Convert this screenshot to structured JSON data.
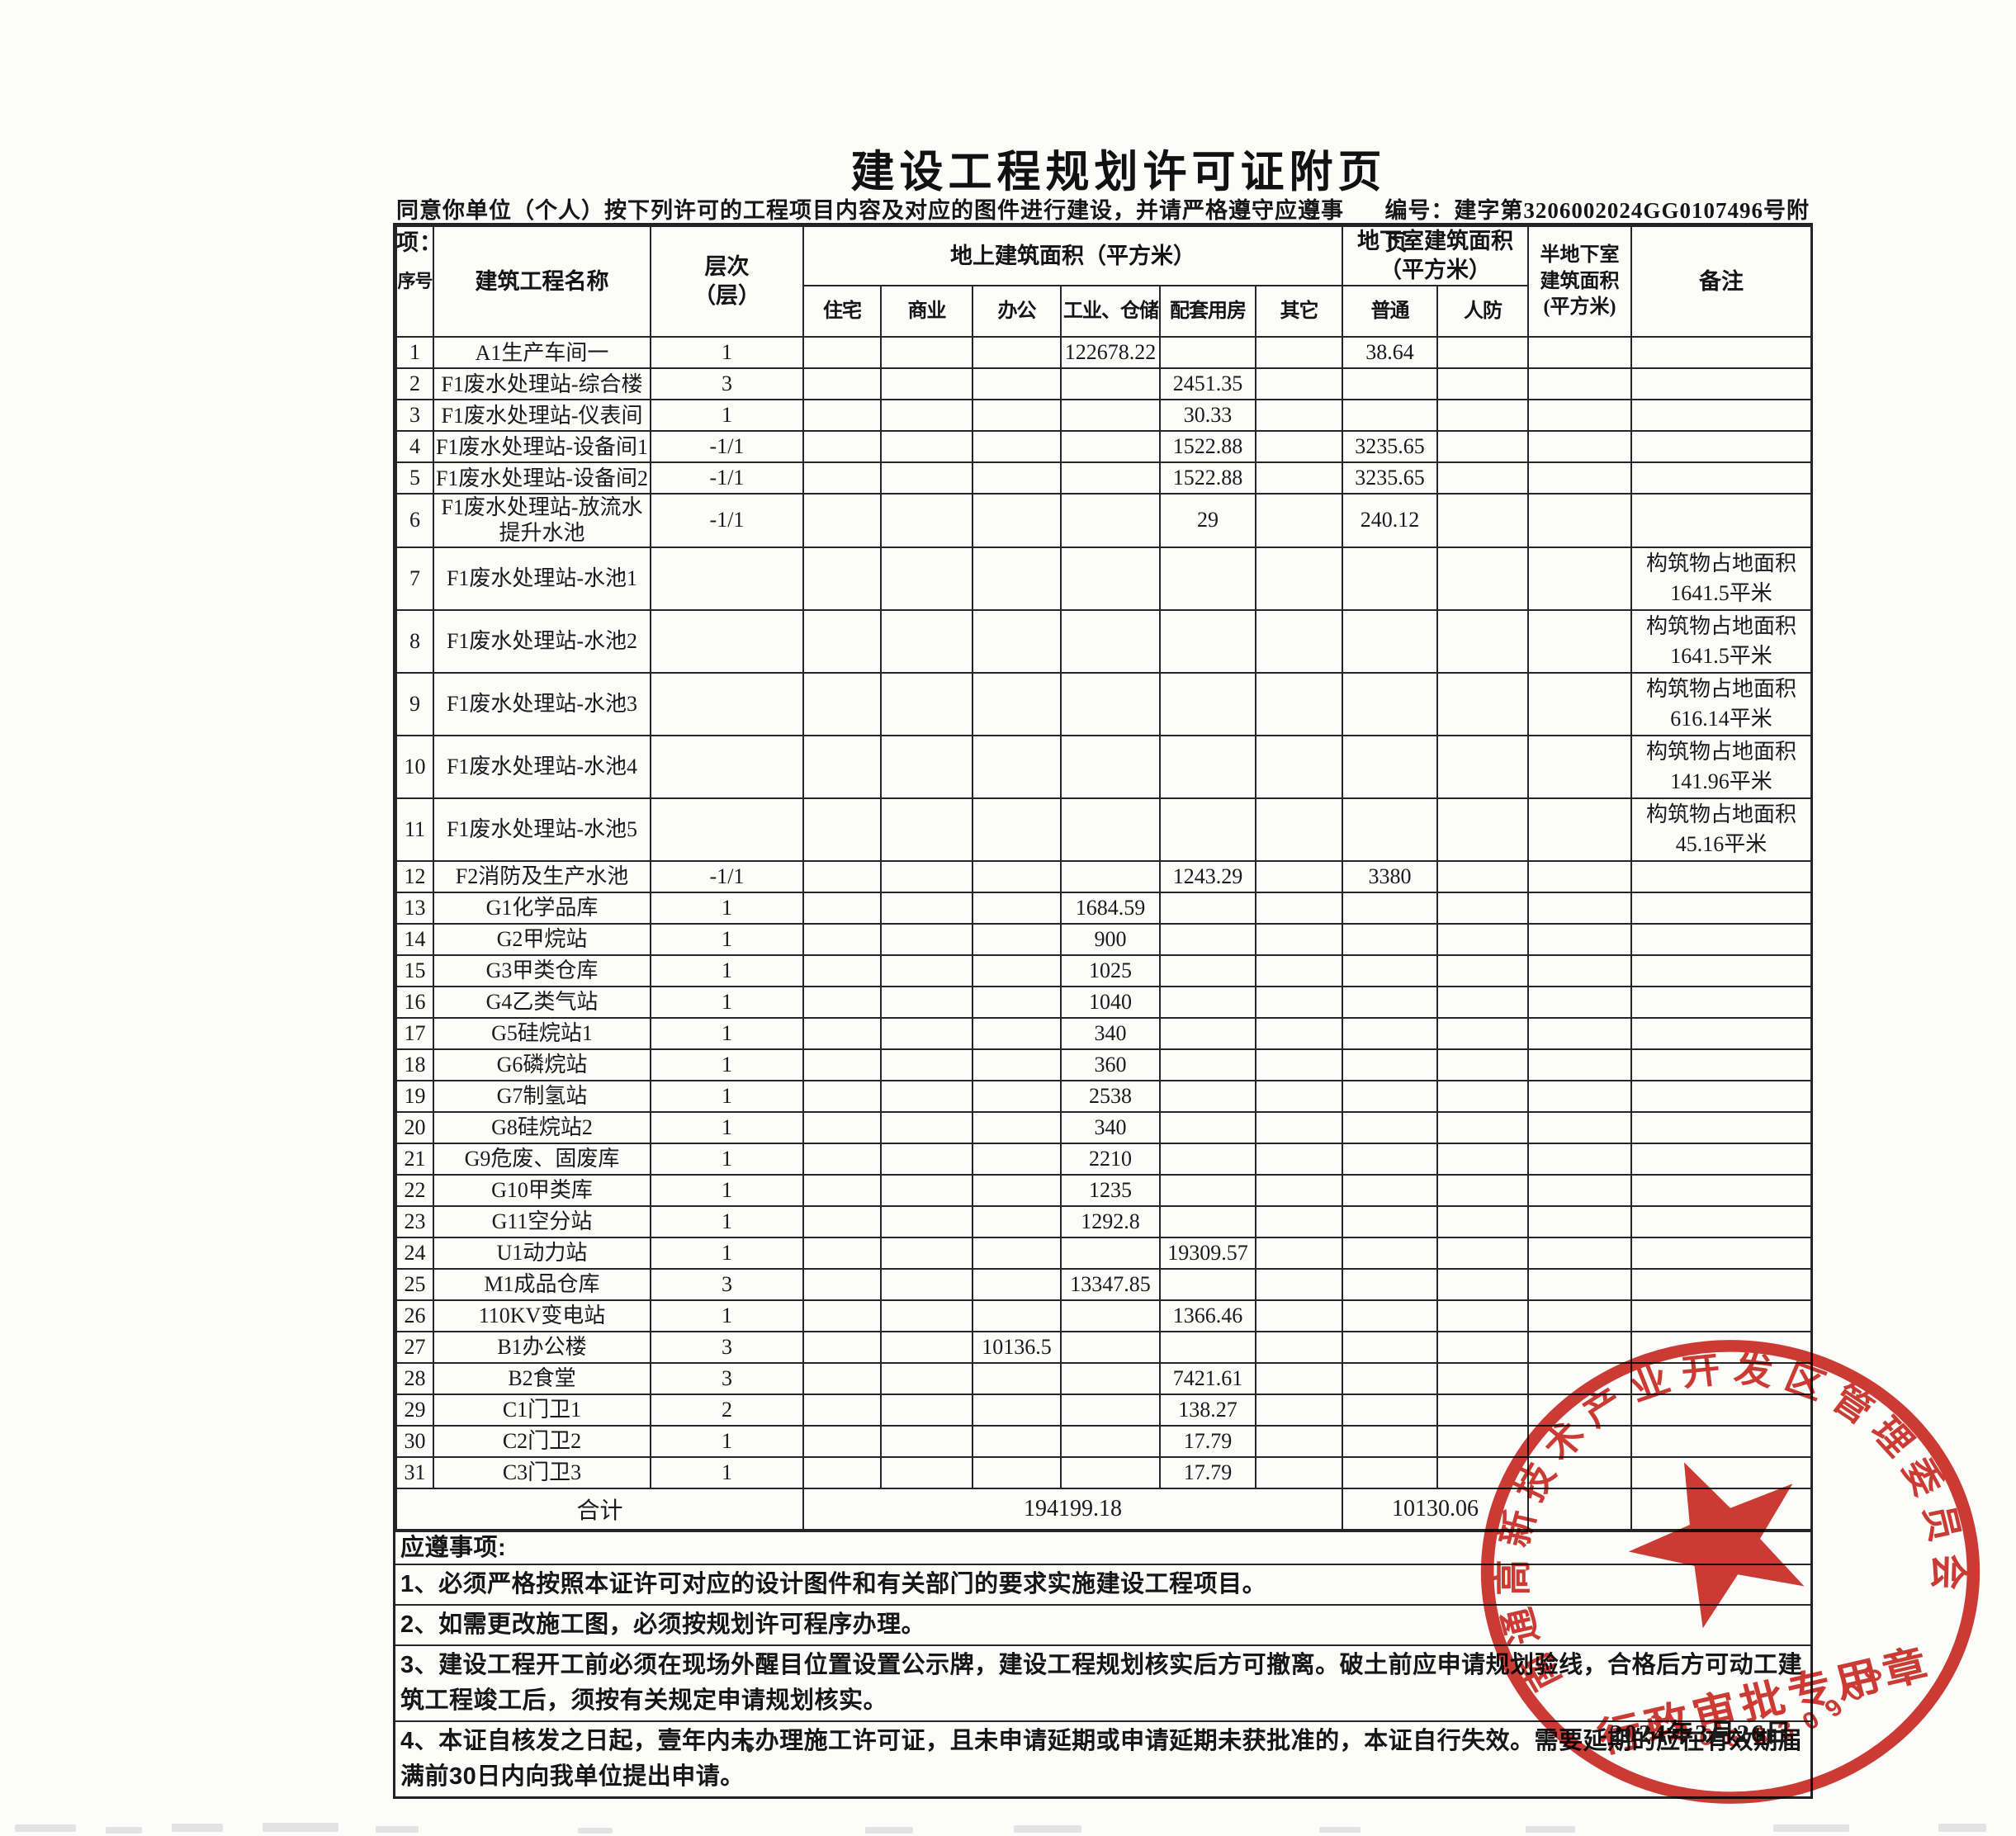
{
  "page": {
    "title": "建设工程规划许可证附页",
    "instruction": "同意你单位（个人）按下列许可的工程项目内容及对应的图件进行建设，并请严格遵守应遵事项：",
    "doc_number": "编号：建字第3206002024GG0107496号附页",
    "issue_date": "2024年3月26日"
  },
  "table": {
    "col_keys": [
      "seq",
      "name",
      "floors",
      "residential",
      "commercial",
      "office",
      "industrial-storage",
      "ancillary",
      "other",
      "basement-common",
      "basement-civil-defense",
      "semi-basement",
      "remark"
    ],
    "headers": {
      "seq": "序号",
      "name": "建筑工程名称",
      "floors": "层次\n（层）",
      "above_ground_group": "地上建筑面积（平方米）",
      "above_ground_cols": [
        "住宅",
        "商业",
        "办公",
        "工业、仓储",
        "配套用房",
        "其它"
      ],
      "basement_group": "地下室建筑面积\n（平方米）",
      "basement_cols": [
        "普通",
        "人防"
      ],
      "semi_basement": "半地下室\n建筑面积\n(平方米)",
      "remark": "备注"
    },
    "rows": [
      [
        "1",
        "A1生产车间一",
        "1",
        "",
        "",
        "",
        "122678.22",
        "",
        "",
        "38.64",
        "",
        "",
        ""
      ],
      [
        "2",
        "F1废水处理站-综合楼",
        "3",
        "",
        "",
        "",
        "",
        "2451.35",
        "",
        "",
        "",
        "",
        ""
      ],
      [
        "3",
        "F1废水处理站-仪表间",
        "1",
        "",
        "",
        "",
        "",
        "30.33",
        "",
        "",
        "",
        "",
        ""
      ],
      [
        "4",
        "F1废水处理站-设备间1",
        "-1/1",
        "",
        "",
        "",
        "",
        "1522.88",
        "",
        "3235.65",
        "",
        "",
        ""
      ],
      [
        "5",
        "F1废水处理站-设备间2",
        "-1/1",
        "",
        "",
        "",
        "",
        "1522.88",
        "",
        "3235.65",
        "",
        "",
        ""
      ],
      [
        "6",
        "F1废水处理站-放流水提升水池",
        "-1/1",
        "",
        "",
        "",
        "",
        "29",
        "",
        "240.12",
        "",
        "",
        ""
      ],
      [
        "7",
        "F1废水处理站-水池1",
        "",
        "",
        "",
        "",
        "",
        "",
        "",
        "",
        "",
        "",
        "构筑物占地面积1641.5平米"
      ],
      [
        "8",
        "F1废水处理站-水池2",
        "",
        "",
        "",
        "",
        "",
        "",
        "",
        "",
        "",
        "",
        "构筑物占地面积1641.5平米"
      ],
      [
        "9",
        "F1废水处理站-水池3",
        "",
        "",
        "",
        "",
        "",
        "",
        "",
        "",
        "",
        "",
        "构筑物占地面积616.14平米"
      ],
      [
        "10",
        "F1废水处理站-水池4",
        "",
        "",
        "",
        "",
        "",
        "",
        "",
        "",
        "",
        "",
        "构筑物占地面积141.96平米"
      ],
      [
        "11",
        "F1废水处理站-水池5",
        "",
        "",
        "",
        "",
        "",
        "",
        "",
        "",
        "",
        "",
        "构筑物占地面积45.16平米"
      ],
      [
        "12",
        "F2消防及生产水池",
        "-1/1",
        "",
        "",
        "",
        "",
        "1243.29",
        "",
        "3380",
        "",
        "",
        ""
      ],
      [
        "13",
        "G1化学品库",
        "1",
        "",
        "",
        "",
        "1684.59",
        "",
        "",
        "",
        "",
        "",
        ""
      ],
      [
        "14",
        "G2甲烷站",
        "1",
        "",
        "",
        "",
        "900",
        "",
        "",
        "",
        "",
        "",
        ""
      ],
      [
        "15",
        "G3甲类仓库",
        "1",
        "",
        "",
        "",
        "1025",
        "",
        "",
        "",
        "",
        "",
        ""
      ],
      [
        "16",
        "G4乙类气站",
        "1",
        "",
        "",
        "",
        "1040",
        "",
        "",
        "",
        "",
        "",
        ""
      ],
      [
        "17",
        "G5硅烷站1",
        "1",
        "",
        "",
        "",
        "340",
        "",
        "",
        "",
        "",
        "",
        ""
      ],
      [
        "18",
        "G6磷烷站",
        "1",
        "",
        "",
        "",
        "360",
        "",
        "",
        "",
        "",
        "",
        ""
      ],
      [
        "19",
        "G7制氢站",
        "1",
        "",
        "",
        "",
        "2538",
        "",
        "",
        "",
        "",
        "",
        ""
      ],
      [
        "20",
        "G8硅烷站2",
        "1",
        "",
        "",
        "",
        "340",
        "",
        "",
        "",
        "",
        "",
        ""
      ],
      [
        "21",
        "G9危废、固废库",
        "1",
        "",
        "",
        "",
        "2210",
        "",
        "",
        "",
        "",
        "",
        ""
      ],
      [
        "22",
        "G10甲类库",
        "1",
        "",
        "",
        "",
        "1235",
        "",
        "",
        "",
        "",
        "",
        ""
      ],
      [
        "23",
        "G11空分站",
        "1",
        "",
        "",
        "",
        "1292.8",
        "",
        "",
        "",
        "",
        "",
        ""
      ],
      [
        "24",
        "U1动力站",
        "1",
        "",
        "",
        "",
        "",
        "19309.57",
        "",
        "",
        "",
        "",
        ""
      ],
      [
        "25",
        "M1成品仓库",
        "3",
        "",
        "",
        "",
        "13347.85",
        "",
        "",
        "",
        "",
        "",
        ""
      ],
      [
        "26",
        "110KV变电站",
        "1",
        "",
        "",
        "",
        "",
        "1366.46",
        "",
        "",
        "",
        "",
        ""
      ],
      [
        "27",
        "B1办公楼",
        "3",
        "",
        "",
        "10136.5",
        "",
        "",
        "",
        "",
        "",
        "",
        ""
      ],
      [
        "28",
        "B2食堂",
        "3",
        "",
        "",
        "",
        "",
        "7421.61",
        "",
        "",
        "",
        "",
        ""
      ],
      [
        "29",
        "C1门卫1",
        "2",
        "",
        "",
        "",
        "",
        "138.27",
        "",
        "",
        "",
        "",
        ""
      ],
      [
        "30",
        "C2门卫2",
        "1",
        "",
        "",
        "",
        "",
        "17.79",
        "",
        "",
        "",
        "",
        ""
      ],
      [
        "31",
        "C3门卫3",
        "1",
        "",
        "",
        "",
        "",
        "17.79",
        "",
        "",
        "",
        "",
        ""
      ]
    ],
    "total_row": {
      "label": "合计",
      "above_ground_total": "194199.18",
      "basement_total": "10130.06",
      "semi_basement_total": "",
      "remark": ""
    }
  },
  "notes": {
    "heading": "应遵事项:",
    "items": [
      "1、必须严格按照本证许可对应的设计图件和有关部门的要求实施建设工程项目。",
      "2、如需更改施工图，必须按规划许可程序办理。",
      "3、建设工程开工前必须在现场外醒目位置设置公示牌，建设工程规划核实后方可撤离。破土前应申请规划验线，合格后方可动工建筑工程竣工后，须按有关规定申请规划核实。",
      "4、本证自核发之日起，壹年内未办理施工许可证，且未申请延期或申请延期未获批准的，本证自行失效。需要延期的应在有效期届满前30日内向我单位提出申请。"
    ]
  },
  "stamp": {
    "org_name": "南通高新技术产业开发区管理委员会",
    "seal_label": "行政审批专用章",
    "seal_code": "3206830906",
    "color": "#cb2a21"
  }
}
